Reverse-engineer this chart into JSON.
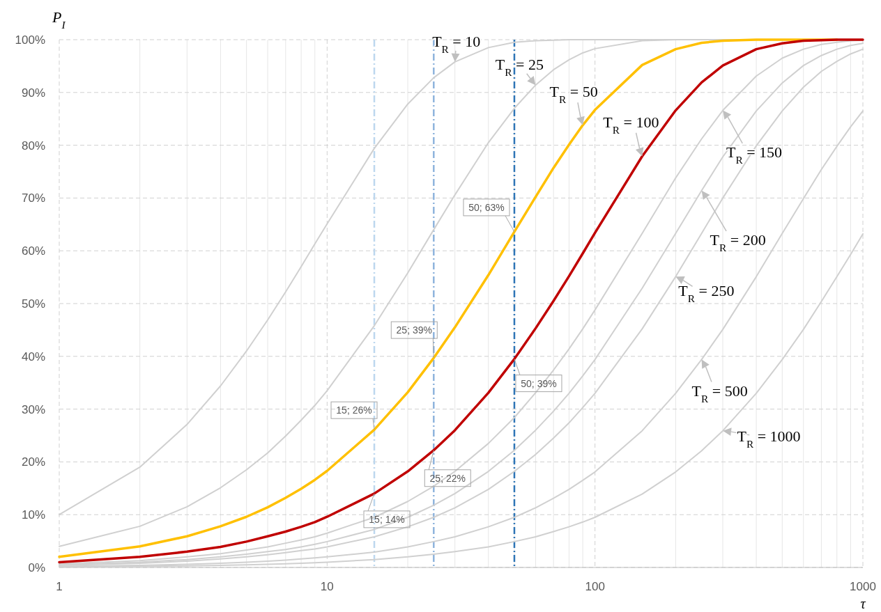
{
  "chart_data": {
    "type": "line",
    "ylabel": "P$_{I}$",
    "xlabel": "τ",
    "x": [
      1,
      2,
      3,
      4,
      5,
      6,
      7,
      8,
      9,
      10,
      15,
      20,
      25,
      30,
      40,
      50,
      60,
      70,
      80,
      90,
      100,
      150,
      200,
      250,
      300,
      400,
      500,
      600,
      700,
      800,
      900,
      1000
    ],
    "series": [
      {
        "color": "#d0d0d0",
        "values": [
          10.0,
          19.0,
          27.1,
          34.4,
          41.0,
          46.9,
          52.2,
          57.0,
          61.3,
          65.1,
          79.4,
          87.8,
          92.8,
          95.8,
          98.5,
          99.5,
          99.8,
          99.9,
          100,
          100,
          100,
          100,
          100,
          100,
          100,
          100,
          100,
          100,
          100,
          100,
          100,
          100
        ]
      },
      {
        "color": "#d0d0d0",
        "values": [
          4.0,
          7.8,
          11.5,
          15.1,
          18.5,
          21.7,
          24.9,
          27.9,
          30.7,
          33.5,
          45.8,
          55.8,
          64.0,
          70.6,
          80.5,
          87.0,
          91.4,
          94.3,
          96.2,
          97.5,
          98.3,
          99.8,
          100,
          100,
          100,
          100,
          100,
          100,
          100,
          100,
          100,
          100
        ]
      },
      {
        "color": "#d0d0d0",
        "values": [
          0.7,
          1.3,
          2.0,
          2.6,
          3.3,
          3.9,
          4.6,
          5.2,
          5.8,
          6.5,
          9.5,
          12.5,
          15.4,
          18.2,
          23.5,
          28.4,
          33.1,
          37.4,
          41.4,
          45.2,
          48.8,
          63.3,
          73.8,
          81.2,
          86.6,
          93.1,
          96.5,
          98.2,
          99.1,
          99.5,
          99.8,
          99.9
        ]
      },
      {
        "color": "#d0d0d0",
        "values": [
          0.5,
          1.0,
          1.5,
          2.0,
          2.5,
          3.0,
          3.4,
          3.9,
          4.4,
          4.9,
          7.2,
          9.5,
          11.8,
          14.0,
          18.2,
          22.2,
          26.0,
          29.6,
          33.0,
          36.3,
          39.4,
          52.9,
          63.3,
          71.4,
          77.8,
          86.5,
          91.8,
          95.1,
          97.0,
          98.2,
          98.9,
          99.3
        ]
      },
      {
        "color": "#d0d0d0",
        "values": [
          0.4,
          0.8,
          1.2,
          1.6,
          2.0,
          2.4,
          2.8,
          3.2,
          3.5,
          3.9,
          5.8,
          7.7,
          9.5,
          11.3,
          14.8,
          18.2,
          21.4,
          24.5,
          27.4,
          30.3,
          33.0,
          45.2,
          55.1,
          63.3,
          70.0,
          79.9,
          86.5,
          91.0,
          94.0,
          95.9,
          97.3,
          98.2
        ]
      },
      {
        "color": "#d0d0d0",
        "values": [
          0.2,
          0.4,
          0.6,
          0.8,
          1.0,
          1.2,
          1.4,
          1.6,
          1.8,
          2.0,
          2.9,
          3.9,
          4.9,
          5.8,
          7.7,
          9.5,
          11.3,
          13.1,
          14.8,
          16.5,
          18.1,
          25.9,
          33.0,
          39.4,
          45.1,
          55.1,
          63.3,
          69.9,
          75.4,
          79.8,
          83.5,
          86.5
        ]
      },
      {
        "color": "#d0d0d0",
        "values": [
          0.1,
          0.2,
          0.3,
          0.4,
          0.5,
          0.6,
          0.7,
          0.8,
          0.9,
          1.0,
          1.5,
          2.0,
          2.5,
          3.0,
          3.9,
          4.9,
          5.8,
          6.8,
          7.7,
          8.6,
          9.5,
          13.9,
          18.1,
          22.1,
          25.9,
          33.0,
          39.4,
          45.1,
          50.4,
          55.1,
          59.3,
          63.2
        ]
      },
      {
        "color": "#ffc000",
        "values": [
          2.0,
          4.0,
          5.9,
          7.8,
          9.6,
          11.4,
          13.2,
          14.9,
          16.6,
          18.3,
          26.1,
          33.2,
          39.7,
          45.5,
          55.4,
          63.6,
          70.2,
          75.7,
          80.1,
          83.8,
          86.7,
          95.2,
          98.2,
          99.4,
          99.8,
          100,
          100,
          100,
          100,
          100,
          null,
          null
        ]
      },
      {
        "color": "#c00000",
        "values": [
          1.0,
          2.0,
          3.0,
          3.9,
          4.9,
          5.9,
          6.8,
          7.7,
          8.6,
          9.6,
          14.0,
          18.2,
          22.2,
          26.0,
          33.1,
          39.5,
          45.3,
          50.5,
          55.2,
          59.5,
          63.4,
          77.9,
          86.6,
          91.9,
          95.1,
          98.2,
          99.3,
          99.8,
          99.9,
          100,
          100,
          100
        ]
      }
    ],
    "log": "x",
    "xlim": [
      1,
      1000
    ],
    "xticks": [
      1,
      10,
      100,
      1000
    ],
    "ylim": [
      0,
      100
    ],
    "yticks": [
      {
        "value": 0,
        "label": "0%"
      },
      {
        "value": 10,
        "label": "10%"
      },
      {
        "value": 20,
        "label": "20%"
      },
      {
        "value": 30,
        "label": "30%"
      },
      {
        "value": 40,
        "label": "40%"
      },
      {
        "value": 50,
        "label": "50%"
      },
      {
        "value": 60,
        "label": "60%"
      },
      {
        "value": 70,
        "label": "70%"
      },
      {
        "value": 80,
        "label": "80%"
      },
      {
        "value": 90,
        "label": "90%"
      },
      {
        "value": 100,
        "label": "100%"
      }
    ],
    "grid": true,
    "ref_lines": [
      {
        "axis": "x",
        "value": 15,
        "color": "#bdd7ee"
      },
      {
        "axis": "x",
        "value": 25,
        "color": "#8fb4dd"
      },
      {
        "axis": "x",
        "value": 50,
        "color": "#2e75b6"
      }
    ],
    "annotations": [
      {
        "text": "T$_{R}$ = 10",
        "x": 30,
        "y": 95.8
      },
      {
        "text": "T$_{R}$ = 25",
        "x": 60,
        "y": 91.4
      },
      {
        "text": "T$_{R}$ = 50",
        "x": 90,
        "y": 83.8
      },
      {
        "text": "T$_{R}$ = 100",
        "x": 150,
        "y": 77.9
      },
      {
        "text": "T$_{R}$ = 150",
        "x": 300,
        "y": 86.6
      },
      {
        "text": "T$_{R}$ = 200",
        "x": 250,
        "y": 71.4
      },
      {
        "text": "T$_{R}$ = 250",
        "x": 200,
        "y": 55.1
      },
      {
        "text": "T$_{R}$ = 500",
        "x": 250,
        "y": 39.4
      },
      {
        "text": "T$_{R}$ = 1000",
        "x": 300,
        "y": 25.9
      },
      {
        "text": "50; 63%",
        "x": 50,
        "y": 63.6
      },
      {
        "text": "25; 39%",
        "x": 25,
        "y": 39.7
      },
      {
        "text": "15; 26%",
        "x": 15,
        "y": 26.1
      },
      {
        "text": "50; 39%",
        "x": 50,
        "y": 39.5
      },
      {
        "text": "25; 22%",
        "x": 25,
        "y": 22.2
      },
      {
        "text": "15; 14%",
        "x": 15,
        "y": 14.0
      }
    ]
  }
}
